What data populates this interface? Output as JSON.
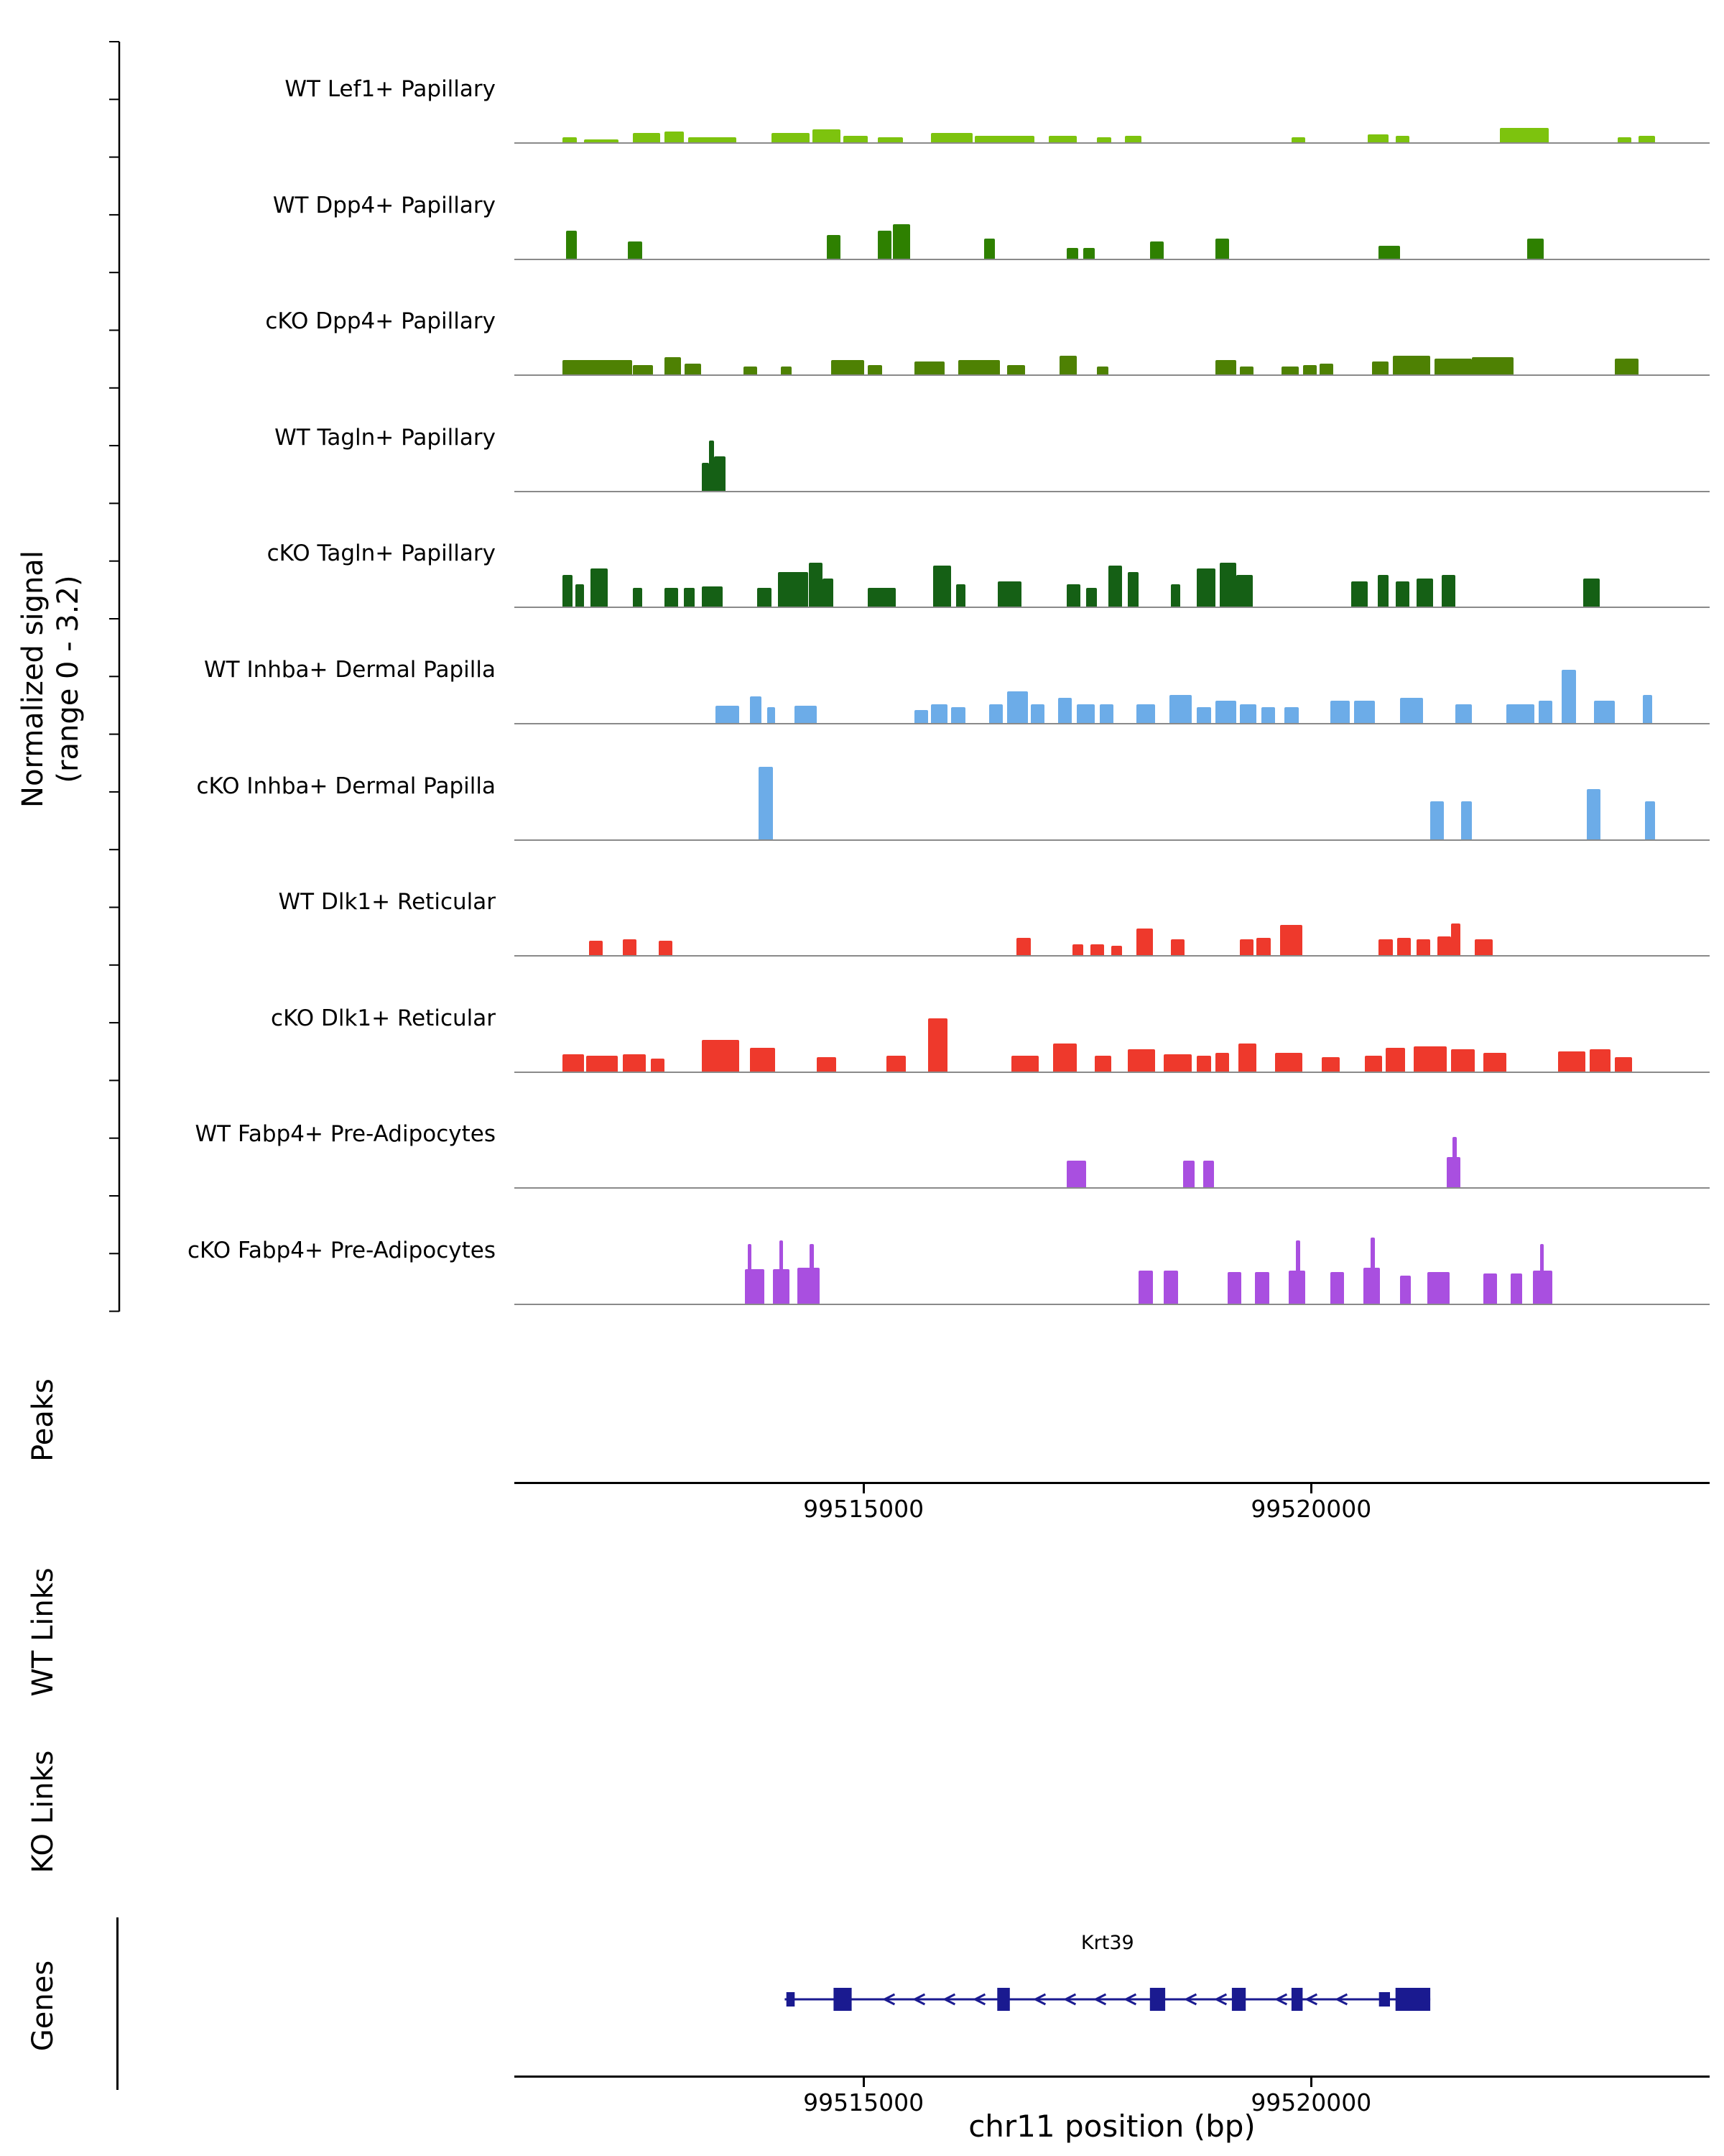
{
  "labels": {
    "normalized_signal_line1": "Normalized signal",
    "normalized_signal_line2": "(range 0 - 3.2)",
    "peaks": "Peaks",
    "wt_links": "WT Links",
    "ko_links": "KO Links",
    "genes": "Genes",
    "x_axis_title": "chr11 position (bp)"
  },
  "chart_data": {
    "type": "area",
    "subtype": "genome-coverage-tracks",
    "chrom": "chr11",
    "xlim": [
      99511100,
      99524450
    ],
    "signal_range": [
      0,
      3.2
    ],
    "x_ticks": [
      99515000,
      99520000
    ],
    "tracks": [
      {
        "name": "WT Lef1+ Papillary",
        "color": "#7dc30e",
        "segments": [
          [
            99511640,
            99511800,
            0.15
          ],
          [
            99511875,
            99512260,
            0.1
          ],
          [
            99512420,
            99512730,
            0.3
          ],
          [
            99512775,
            99512990,
            0.35
          ],
          [
            99513040,
            99513580,
            0.15
          ],
          [
            99513970,
            99514400,
            0.3
          ],
          [
            99514430,
            99514740,
            0.4
          ],
          [
            99514775,
            99515050,
            0.2
          ],
          [
            99515160,
            99515440,
            0.15
          ],
          [
            99515750,
            99516215,
            0.3
          ],
          [
            99516245,
            99516910,
            0.2
          ],
          [
            99517070,
            99517380,
            0.2
          ],
          [
            99517610,
            99517765,
            0.15
          ],
          [
            99517920,
            99518105,
            0.2
          ],
          [
            99519780,
            99519935,
            0.15
          ],
          [
            99520630,
            99520865,
            0.25
          ],
          [
            99520940,
            99521100,
            0.2
          ],
          [
            99522105,
            99522650,
            0.45
          ],
          [
            99523420,
            99523580,
            0.15
          ],
          [
            99523655,
            99523840,
            0.2
          ]
        ]
      },
      {
        "name": "WT Dpp4+ Papillary",
        "color": "#2e8000",
        "segments": [
          [
            99511675,
            99511800,
            0.9
          ],
          [
            99512370,
            99512525,
            0.55
          ],
          [
            99514590,
            99514740,
            0.75
          ],
          [
            99515160,
            99515315,
            0.9
          ],
          [
            99515330,
            99515520,
            1.1
          ],
          [
            99516345,
            99516470,
            0.65
          ],
          [
            99517270,
            99517395,
            0.35
          ],
          [
            99517455,
            99517580,
            0.35
          ],
          [
            99518200,
            99518355,
            0.55
          ],
          [
            99518930,
            99519080,
            0.65
          ],
          [
            99520755,
            99520990,
            0.4
          ],
          [
            99522415,
            99522600,
            0.65
          ]
        ]
      },
      {
        "name": "cKO Dpp4+ Papillary",
        "color": "#4e8103",
        "segments": [
          [
            99511640,
            99512420,
            0.45
          ],
          [
            99512420,
            99512650,
            0.3
          ],
          [
            99512775,
            99512960,
            0.55
          ],
          [
            99513005,
            99513190,
            0.35
          ],
          [
            99513660,
            99513810,
            0.25
          ],
          [
            99514075,
            99514200,
            0.25
          ],
          [
            99514635,
            99515005,
            0.45
          ],
          [
            99515050,
            99515210,
            0.3
          ],
          [
            99515565,
            99515905,
            0.4
          ],
          [
            99516060,
            99516525,
            0.45
          ],
          [
            99516600,
            99516805,
            0.3
          ],
          [
            99517190,
            99517380,
            0.6
          ],
          [
            99517610,
            99517735,
            0.25
          ],
          [
            99518930,
            99519160,
            0.45
          ],
          [
            99519205,
            99519360,
            0.25
          ],
          [
            99519670,
            99519860,
            0.25
          ],
          [
            99519905,
            99520060,
            0.3
          ],
          [
            99520090,
            99520245,
            0.35
          ],
          [
            99520680,
            99520865,
            0.4
          ],
          [
            99520910,
            99521330,
            0.6
          ],
          [
            99521375,
            99521795,
            0.5
          ],
          [
            99521795,
            99522260,
            0.55
          ],
          [
            99523390,
            99523655,
            0.5
          ]
        ]
      },
      {
        "name": "WT Tagln+ Papillary",
        "color": "#156015",
        "segments": [
          [
            99513190,
            99513270,
            0.9
          ],
          [
            99513270,
            99513330,
            1.6
          ],
          [
            99513330,
            99513455,
            1.1
          ]
        ]
      },
      {
        "name": "cKO Tagln+ Papillary",
        "color": "#156015",
        "segments": [
          [
            99511640,
            99511750,
            1.0
          ],
          [
            99511780,
            99511875,
            0.7
          ],
          [
            99511950,
            99512140,
            1.2
          ],
          [
            99512420,
            99512525,
            0.6
          ],
          [
            99512775,
            99512930,
            0.6
          ],
          [
            99512990,
            99513115,
            0.6
          ],
          [
            99513190,
            99513425,
            0.65
          ],
          [
            99513810,
            99513970,
            0.6
          ],
          [
            99514045,
            99514385,
            1.1
          ],
          [
            99514385,
            99514540,
            1.4
          ],
          [
            99514540,
            99514665,
            0.9
          ],
          [
            99515050,
            99515360,
            0.6
          ],
          [
            99515780,
            99515980,
            1.3
          ],
          [
            99516030,
            99516140,
            0.7
          ],
          [
            99516495,
            99516760,
            0.8
          ],
          [
            99517270,
            99517425,
            0.7
          ],
          [
            99517485,
            99517610,
            0.6
          ],
          [
            99517735,
            99517890,
            1.3
          ],
          [
            99517950,
            99518075,
            1.1
          ],
          [
            99518430,
            99518540,
            0.7
          ],
          [
            99518725,
            99518930,
            1.2
          ],
          [
            99518975,
            99519160,
            1.4
          ],
          [
            99519160,
            99519345,
            1.0
          ],
          [
            99520450,
            99520630,
            0.8
          ],
          [
            99520740,
            99520865,
            1.0
          ],
          [
            99520940,
            99521100,
            0.8
          ],
          [
            99521175,
            99521360,
            0.9
          ],
          [
            99521455,
            99521610,
            1.0
          ],
          [
            99523035,
            99523220,
            0.9
          ]
        ]
      },
      {
        "name": "WT Inhba+ Dermal Papilla",
        "color": "#6cace8",
        "segments": [
          [
            99513350,
            99513610,
            0.55
          ],
          [
            99513735,
            99513860,
            0.85
          ],
          [
            99513920,
            99514015,
            0.5
          ],
          [
            99514230,
            99514480,
            0.55
          ],
          [
            99515565,
            99515720,
            0.4
          ],
          [
            99515750,
            99515935,
            0.6
          ],
          [
            99515980,
            99516140,
            0.5
          ],
          [
            99516400,
            99516555,
            0.6
          ],
          [
            99516600,
            99516835,
            1.0
          ],
          [
            99516865,
            99517020,
            0.6
          ],
          [
            99517175,
            99517330,
            0.8
          ],
          [
            99517380,
            99517580,
            0.6
          ],
          [
            99517640,
            99517795,
            0.6
          ],
          [
            99518045,
            99518260,
            0.6
          ],
          [
            99518415,
            99518665,
            0.9
          ],
          [
            99518725,
            99518880,
            0.5
          ],
          [
            99518930,
            99519160,
            0.7
          ],
          [
            99519205,
            99519390,
            0.6
          ],
          [
            99519440,
            99519595,
            0.5
          ],
          [
            99519700,
            99519860,
            0.5
          ],
          [
            99520215,
            99520430,
            0.7
          ],
          [
            99520480,
            99520710,
            0.7
          ],
          [
            99520990,
            99521250,
            0.8
          ],
          [
            99521610,
            99521795,
            0.6
          ],
          [
            99522180,
            99522490,
            0.6
          ],
          [
            99522540,
            99522695,
            0.7
          ],
          [
            99522800,
            99522960,
            1.7
          ],
          [
            99523160,
            99523390,
            0.7
          ],
          [
            99523700,
            99523810,
            0.9
          ]
        ]
      },
      {
        "name": "cKO Inhba+ Dermal Papilla",
        "color": "#6cace8",
        "segments": [
          [
            99513830,
            99513985,
            2.3
          ],
          [
            99521330,
            99521485,
            1.2
          ],
          [
            99521670,
            99521795,
            1.2
          ],
          [
            99523080,
            99523235,
            1.6
          ],
          [
            99523730,
            99523840,
            1.2
          ]
        ]
      },
      {
        "name": "WT Dlk1+ Reticular",
        "color": "#ee392c",
        "segments": [
          [
            99511935,
            99512090,
            0.45
          ],
          [
            99512310,
            99512465,
            0.5
          ],
          [
            99512710,
            99512865,
            0.45
          ],
          [
            99516710,
            99516865,
            0.55
          ],
          [
            99517330,
            99517455,
            0.35
          ],
          [
            99517530,
            99517690,
            0.35
          ],
          [
            99517765,
            99517890,
            0.3
          ],
          [
            99518045,
            99518230,
            0.85
          ],
          [
            99518430,
            99518585,
            0.5
          ],
          [
            99519205,
            99519360,
            0.5
          ],
          [
            99519390,
            99519550,
            0.55
          ],
          [
            99519655,
            99519905,
            0.95
          ],
          [
            99520755,
            99520910,
            0.5
          ],
          [
            99520960,
            99521115,
            0.55
          ],
          [
            99521175,
            99521330,
            0.5
          ],
          [
            99521410,
            99521560,
            0.6
          ],
          [
            99521560,
            99521670,
            1.0
          ],
          [
            99521825,
            99522030,
            0.5
          ]
        ]
      },
      {
        "name": "cKO Dlk1+ Reticular",
        "color": "#ee392c",
        "segments": [
          [
            99511640,
            99511875,
            0.55
          ],
          [
            99511905,
            99512260,
            0.5
          ],
          [
            99512310,
            99512570,
            0.55
          ],
          [
            99512620,
            99512775,
            0.4
          ],
          [
            99513190,
            99513610,
            1.0
          ],
          [
            99513735,
            99514015,
            0.75
          ],
          [
            99514480,
            99514695,
            0.45
          ],
          [
            99515255,
            99515470,
            0.5
          ],
          [
            99515720,
            99515935,
            1.7
          ],
          [
            99516650,
            99516960,
            0.5
          ],
          [
            99517115,
            99517380,
            0.9
          ],
          [
            99517580,
            99517765,
            0.5
          ],
          [
            99517950,
            99518260,
            0.7
          ],
          [
            99518355,
            99518665,
            0.55
          ],
          [
            99518725,
            99518880,
            0.5
          ],
          [
            99518930,
            99519080,
            0.6
          ],
          [
            99519190,
            99519390,
            0.9
          ],
          [
            99519595,
            99519905,
            0.6
          ],
          [
            99520120,
            99520320,
            0.45
          ],
          [
            99520600,
            99520790,
            0.5
          ],
          [
            99520835,
            99521050,
            0.75
          ],
          [
            99521145,
            99521515,
            0.8
          ],
          [
            99521560,
            99521825,
            0.7
          ],
          [
            99521920,
            99522180,
            0.6
          ],
          [
            99522755,
            99523065,
            0.65
          ],
          [
            99523110,
            99523345,
            0.7
          ],
          [
            99523390,
            99523580,
            0.45
          ]
        ]
      },
      {
        "name": "WT Fabp4+ Pre-Adipocytes",
        "color": "#a94fe0",
        "segments": [
          [
            99517270,
            99517485,
            0.85
          ],
          [
            99518570,
            99518695,
            0.85
          ],
          [
            99518790,
            99518910,
            0.85
          ],
          [
            99521515,
            99521670,
            0.95
          ],
          [
            99521580,
            99521625,
            1.6
          ]
        ]
      },
      {
        "name": "cKO Fabp4+ Pre-Adipocytes",
        "color": "#a94fe0",
        "segments": [
          [
            99513675,
            99513890,
            1.1
          ],
          [
            99513705,
            99513750,
            1.9
          ],
          [
            99513985,
            99514170,
            1.1
          ],
          [
            99514060,
            99514105,
            2.0
          ],
          [
            99514260,
            99514510,
            1.15
          ],
          [
            99514400,
            99514450,
            1.9
          ],
          [
            99518075,
            99518230,
            1.05
          ],
          [
            99518355,
            99518510,
            1.05
          ],
          [
            99519065,
            99519220,
            1.0
          ],
          [
            99519375,
            99519530,
            1.0
          ],
          [
            99519750,
            99519935,
            1.05
          ],
          [
            99519825,
            99519875,
            2.0
          ],
          [
            99520215,
            99520370,
            1.0
          ],
          [
            99520585,
            99520770,
            1.15
          ],
          [
            99520665,
            99520710,
            2.1
          ],
          [
            99520990,
            99521115,
            0.9
          ],
          [
            99521300,
            99521545,
            1.0
          ],
          [
            99521920,
            99522075,
            0.95
          ],
          [
            99522230,
            99522355,
            0.95
          ],
          [
            99522475,
            99522695,
            1.05
          ],
          [
            99522555,
            99522600,
            1.9
          ]
        ]
      }
    ],
    "gene": {
      "name": "Krt39",
      "strand": "-",
      "start": 99514120,
      "end": 99521330,
      "color": "#1a1a90",
      "exons": [
        [
          99514138,
          99514231,
          "s"
        ],
        [
          99514665,
          99514867,
          "t"
        ],
        [
          99516494,
          99516634,
          "t"
        ],
        [
          99518199,
          99518370,
          "t"
        ],
        [
          99519114,
          99519269,
          "t"
        ],
        [
          99519780,
          99519904,
          "t"
        ],
        [
          99520757,
          99520880,
          "s"
        ],
        [
          99520942,
          99521330,
          "t"
        ]
      ]
    }
  }
}
